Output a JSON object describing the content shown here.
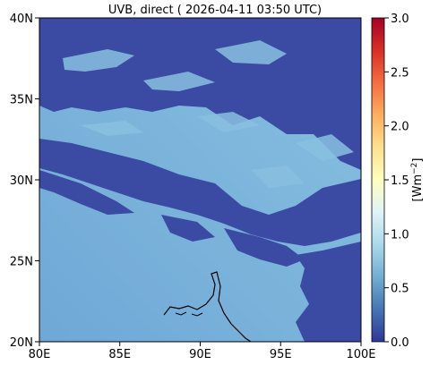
{
  "title": "UVB, direct ( 2026-04-11 03:50 UTC)",
  "x_axis": {
    "ticks": [
      {
        "value": 80,
        "label": "80E"
      },
      {
        "value": 85,
        "label": "85E"
      },
      {
        "value": 90,
        "label": "90E"
      },
      {
        "value": 95,
        "label": "95E"
      },
      {
        "value": 100,
        "label": "100E"
      }
    ],
    "range": [
      80,
      100
    ]
  },
  "y_axis": {
    "ticks": [
      {
        "value": 20,
        "label": "20N"
      },
      {
        "value": 25,
        "label": "25N"
      },
      {
        "value": 30,
        "label": "30N"
      },
      {
        "value": 35,
        "label": "35N"
      },
      {
        "value": 40,
        "label": "40N"
      }
    ],
    "range": [
      20,
      40
    ]
  },
  "colorbar": {
    "label": "[Wm",
    "label_exp": "−2",
    "label_end": "]",
    "range": [
      0,
      3
    ],
    "ticks": [
      {
        "value": 0.0,
        "label": "0.0"
      },
      {
        "value": 0.5,
        "label": "0.5"
      },
      {
        "value": 1.0,
        "label": "1.0"
      },
      {
        "value": 1.5,
        "label": "1.5"
      },
      {
        "value": 2.0,
        "label": "2.0"
      },
      {
        "value": 2.5,
        "label": "2.5"
      },
      {
        "value": 3.0,
        "label": "3.0"
      }
    ],
    "colormap": "RdYlBu_r",
    "colors": [
      "#313695",
      "#4575b4",
      "#74add1",
      "#abd9e9",
      "#e0f3f8",
      "#ffffbf",
      "#fee090",
      "#fdae61",
      "#f46d43",
      "#d73027",
      "#a50026"
    ]
  },
  "map_colors": {
    "cloud": "#3b4aa2",
    "clear_sky": "#6fa8d6",
    "clear_sky_bright": "#88c0e0",
    "coastline": "#000000"
  }
}
